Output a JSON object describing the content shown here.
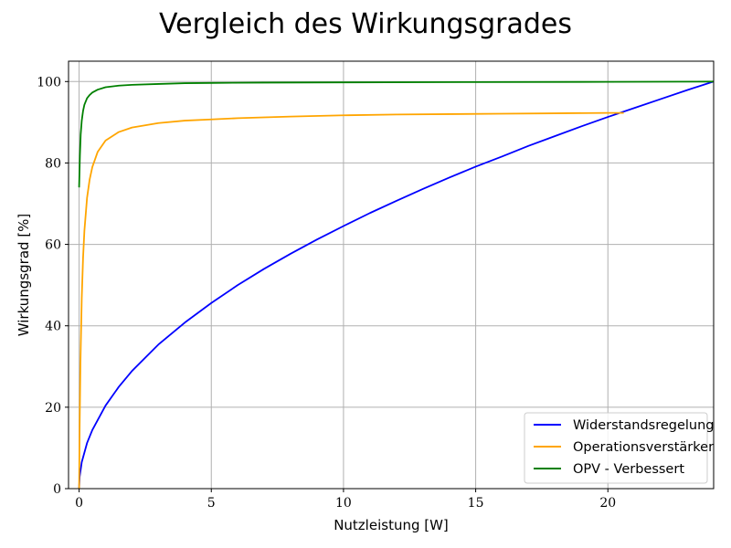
{
  "chart_data": {
    "type": "line",
    "title": "Vergleich des Wirkungsgrades",
    "xlabel": "Nutzleistung [W]",
    "ylabel": "Wirkungsgrad [%]",
    "xlim": [
      -0.4,
      24
    ],
    "ylim": [
      0,
      105
    ],
    "xticks": [
      0,
      5,
      10,
      15,
      20
    ],
    "yticks": [
      0,
      20,
      40,
      60,
      80,
      100
    ],
    "grid": true,
    "legend_position": "lower-right",
    "series": [
      {
        "name": "Widerstandsregelung",
        "color": "#0000ff",
        "points": [
          [
            0,
            0
          ],
          [
            0.02,
            2.9
          ],
          [
            0.1,
            6.5
          ],
          [
            0.3,
            11.2
          ],
          [
            0.5,
            14.4
          ],
          [
            1,
            20.4
          ],
          [
            1.5,
            25.0
          ],
          [
            2,
            28.9
          ],
          [
            3,
            35.4
          ],
          [
            4,
            40.8
          ],
          [
            5,
            45.6
          ],
          [
            6,
            50.0
          ],
          [
            7,
            54.0
          ],
          [
            8,
            57.7
          ],
          [
            9,
            61.2
          ],
          [
            10,
            64.5
          ],
          [
            11,
            67.7
          ],
          [
            12,
            70.7
          ],
          [
            13,
            73.6
          ],
          [
            14,
            76.4
          ],
          [
            15,
            79.1
          ],
          [
            16,
            81.6
          ],
          [
            17,
            84.2
          ],
          [
            18,
            86.6
          ],
          [
            19,
            89.0
          ],
          [
            20,
            91.3
          ],
          [
            21,
            93.5
          ],
          [
            22,
            95.7
          ],
          [
            23,
            97.9
          ],
          [
            24,
            100
          ]
        ]
      },
      {
        "name": "Operationsverstärker",
        "color": "#ffa500",
        "points": [
          [
            0,
            0
          ],
          [
            0.02,
            15.2
          ],
          [
            0.05,
            30.8
          ],
          [
            0.1,
            46.8
          ],
          [
            0.15,
            56.7
          ],
          [
            0.2,
            63.3
          ],
          [
            0.3,
            71.4
          ],
          [
            0.4,
            76.0
          ],
          [
            0.5,
            79.0
          ],
          [
            0.7,
            82.7
          ],
          [
            1,
            85.5
          ],
          [
            1.5,
            87.6
          ],
          [
            2,
            88.7
          ],
          [
            3,
            89.8
          ],
          [
            4,
            90.4
          ],
          [
            5,
            90.7
          ],
          [
            6,
            91.0
          ],
          [
            8,
            91.4
          ],
          [
            10,
            91.7
          ],
          [
            12,
            91.9
          ],
          [
            14,
            92.0
          ],
          [
            16,
            92.1
          ],
          [
            18,
            92.2
          ],
          [
            20,
            92.3
          ],
          [
            20.6,
            92.3
          ]
        ]
      },
      {
        "name": "OPV - Verbessert",
        "color": "#008000",
        "points": [
          [
            0,
            74
          ],
          [
            0.03,
            81.8
          ],
          [
            0.06,
            87
          ],
          [
            0.1,
            90.4
          ],
          [
            0.15,
            92.8
          ],
          [
            0.2,
            94.3
          ],
          [
            0.3,
            95.9
          ],
          [
            0.4,
            96.7
          ],
          [
            0.5,
            97.3
          ],
          [
            0.7,
            98.0
          ],
          [
            1,
            98.6
          ],
          [
            1.5,
            99.0
          ],
          [
            2,
            99.2
          ],
          [
            3,
            99.4
          ],
          [
            4,
            99.6
          ],
          [
            5,
            99.66
          ],
          [
            7,
            99.74
          ],
          [
            10,
            99.8
          ],
          [
            15,
            99.87
          ],
          [
            20,
            99.92
          ],
          [
            24,
            100
          ]
        ]
      }
    ]
  }
}
